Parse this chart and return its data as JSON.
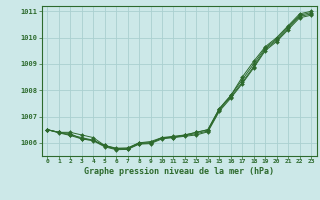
{
  "title": "Graphe pression niveau de la mer (hPa)",
  "xlabel_hours": [
    0,
    1,
    2,
    3,
    4,
    5,
    6,
    7,
    8,
    9,
    10,
    11,
    12,
    13,
    14,
    15,
    16,
    17,
    18,
    19,
    20,
    21,
    22,
    23
  ],
  "series1": [
    1006.5,
    1006.4,
    1006.4,
    1006.3,
    1006.2,
    1005.9,
    1005.8,
    1005.8,
    1006.0,
    1006.0,
    1006.2,
    1006.2,
    1006.3,
    1006.4,
    1006.5,
    1007.3,
    1007.8,
    1008.5,
    1009.1,
    1009.65,
    1010.0,
    1010.45,
    1010.9,
    1011.0
  ],
  "series2": [
    1006.5,
    1006.4,
    1006.35,
    1006.15,
    1006.1,
    1005.9,
    1005.78,
    1005.8,
    1006.0,
    1006.05,
    1006.2,
    1006.25,
    1006.3,
    1006.4,
    1006.5,
    1007.3,
    1007.8,
    1008.4,
    1009.0,
    1009.6,
    1009.95,
    1010.4,
    1010.85,
    1010.95
  ],
  "series3": [
    1006.5,
    1006.4,
    1006.3,
    1006.2,
    1006.1,
    1005.88,
    1005.76,
    1005.77,
    1005.97,
    1006.0,
    1006.18,
    1006.22,
    1006.28,
    1006.35,
    1006.45,
    1007.25,
    1007.75,
    1008.3,
    1008.9,
    1009.55,
    1009.9,
    1010.35,
    1010.8,
    1010.9
  ],
  "series4": [
    1006.5,
    1006.38,
    1006.28,
    1006.15,
    1006.08,
    1005.85,
    1005.74,
    1005.75,
    1005.95,
    1005.97,
    1006.15,
    1006.2,
    1006.25,
    1006.3,
    1006.42,
    1007.2,
    1007.7,
    1008.25,
    1008.85,
    1009.5,
    1009.85,
    1010.3,
    1010.75,
    1010.85
  ],
  "ylim": [
    1005.5,
    1011.2
  ],
  "yticks": [
    1006,
    1007,
    1008,
    1009,
    1010,
    1011
  ],
  "line_color": "#2d6a2d",
  "bg_color": "#cce8e8",
  "grid_color": "#aad0d0",
  "marker": "D",
  "marker_size": 2.0,
  "figwidth": 3.2,
  "figheight": 2.0,
  "dpi": 100
}
